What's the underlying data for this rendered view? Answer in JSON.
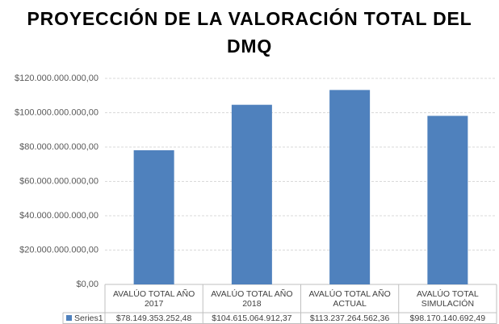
{
  "chart_data": {
    "type": "bar",
    "title": "PROYECCIÓN DE LA VALORACIÓN TOTAL DEL DMQ",
    "categories": [
      "AVALÚO TOTAL AÑO 2017",
      "AVALÚO TOTAL AÑO 2018",
      "AVALÚO TOTAL AÑO ACTUAL",
      "AVALÚO TOTAL SIMULACIÓN"
    ],
    "series": [
      {
        "name": "Series1",
        "color": "#4f81bd",
        "values": [
          78149353252.48,
          104615064912.37,
          113237264562.36,
          98170140692.49
        ],
        "value_labels": [
          "$78.149.353.252,48",
          "$104.615.064.912,37",
          "$113.237.264.562,36",
          "$98.170.140.692,49"
        ]
      }
    ],
    "ylim": [
      0,
      120000000000
    ],
    "yticks": [
      {
        "value": 0,
        "label": "$0,00"
      },
      {
        "value": 20000000000,
        "label": "$20.000.000.000,00"
      },
      {
        "value": 40000000000,
        "label": "$40.000.000.000,00"
      },
      {
        "value": 60000000000,
        "label": "$60.000.000.000,00"
      },
      {
        "value": 80000000000,
        "label": "$80.000.000.000,00"
      },
      {
        "value": 100000000000,
        "label": "$100.000.000.000,00"
      },
      {
        "value": 120000000000,
        "label": "$120.000.000.000,00"
      }
    ],
    "grid": true
  }
}
